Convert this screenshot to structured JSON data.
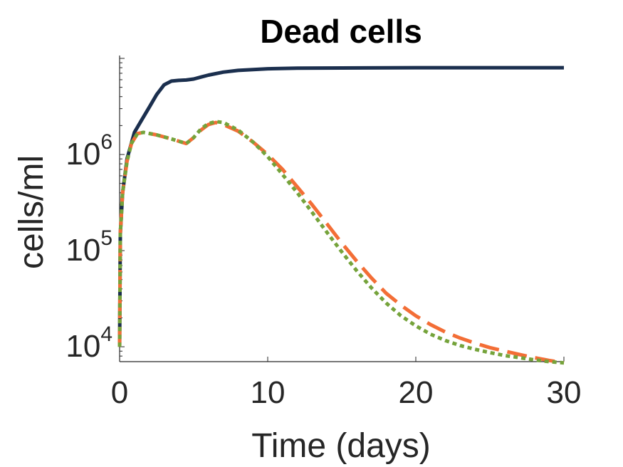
{
  "chart_data": {
    "type": "line",
    "title": "Dead cells",
    "xlabel": "Time (days)",
    "ylabel": "cells/ml",
    "xlim": [
      0,
      30
    ],
    "ylim": [
      7000,
      10000000
    ],
    "yscale": "log",
    "xticks": [
      0,
      10,
      20,
      30
    ],
    "xtick_labels": [
      "0",
      "10",
      "20",
      "30"
    ],
    "yticks": [
      10000,
      100000,
      1000000
    ],
    "ytick_labels": [
      {
        "base": "10",
        "exp": "4"
      },
      {
        "base": "10",
        "exp": "5"
      },
      {
        "base": "10",
        "exp": "6"
      }
    ],
    "grid": false,
    "legend": "none",
    "series": [
      {
        "color": "#1b2f4e",
        "style": "solid",
        "points": [
          [
            0,
            10000
          ],
          [
            0.05,
            150000
          ],
          [
            0.2,
            400000
          ],
          [
            0.5,
            900000
          ],
          [
            1,
            1700000
          ],
          [
            1.5,
            2300000
          ],
          [
            2,
            3100000
          ],
          [
            2.5,
            4200000
          ],
          [
            3,
            5300000
          ],
          [
            3.5,
            5800000
          ],
          [
            4,
            5900000
          ],
          [
            4.5,
            5950000
          ],
          [
            5,
            6100000
          ],
          [
            5.5,
            6400000
          ],
          [
            6,
            6700000
          ],
          [
            7,
            7200000
          ],
          [
            8,
            7500000
          ],
          [
            10,
            7800000
          ],
          [
            12,
            7900000
          ],
          [
            15,
            7950000
          ],
          [
            20,
            8000000
          ],
          [
            25,
            8000000
          ],
          [
            30,
            8000000
          ]
        ]
      },
      {
        "color": "#f36e36",
        "style": "dashed",
        "points": [
          [
            0,
            10000
          ],
          [
            0.05,
            150000
          ],
          [
            0.2,
            400000
          ],
          [
            0.5,
            850000
          ],
          [
            0.8,
            1300000
          ],
          [
            1.2,
            1650000
          ],
          [
            1.6,
            1700000
          ],
          [
            2.5,
            1600000
          ],
          [
            3.5,
            1450000
          ],
          [
            4.5,
            1300000
          ],
          [
            5,
            1500000
          ],
          [
            5.5,
            1800000
          ],
          [
            6,
            2050000
          ],
          [
            6.5,
            2150000
          ],
          [
            7,
            2050000
          ],
          [
            8,
            1750000
          ],
          [
            9,
            1350000
          ],
          [
            10,
            1000000
          ],
          [
            11,
            700000
          ],
          [
            12,
            460000
          ],
          [
            13,
            300000
          ],
          [
            14,
            190000
          ],
          [
            15,
            120000
          ],
          [
            16,
            78000
          ],
          [
            17,
            52000
          ],
          [
            18,
            36000
          ],
          [
            19,
            27000
          ],
          [
            20,
            21000
          ],
          [
            21,
            17000
          ],
          [
            22,
            14200
          ],
          [
            23,
            12300
          ],
          [
            24,
            10900
          ],
          [
            25,
            9800
          ],
          [
            26,
            9000
          ],
          [
            27,
            8300
          ],
          [
            28,
            7700
          ],
          [
            29,
            7200
          ],
          [
            30,
            6800
          ]
        ]
      },
      {
        "color": "#75a33b",
        "style": "dotted",
        "points": [
          [
            0,
            10000
          ],
          [
            0.05,
            150000
          ],
          [
            0.2,
            400000
          ],
          [
            0.5,
            850000
          ],
          [
            0.8,
            1300000
          ],
          [
            1.2,
            1650000
          ],
          [
            1.6,
            1700000
          ],
          [
            2.5,
            1600000
          ],
          [
            3.5,
            1450000
          ],
          [
            4.5,
            1300000
          ],
          [
            5,
            1500000
          ],
          [
            5.5,
            1850000
          ],
          [
            6,
            2100000
          ],
          [
            6.5,
            2200000
          ],
          [
            7,
            2150000
          ],
          [
            8,
            1800000
          ],
          [
            9,
            1350000
          ],
          [
            10,
            950000
          ],
          [
            11,
            620000
          ],
          [
            12,
            400000
          ],
          [
            13,
            250000
          ],
          [
            14,
            155000
          ],
          [
            15,
            97000
          ],
          [
            16,
            62000
          ],
          [
            17,
            41000
          ],
          [
            18,
            28500
          ],
          [
            19,
            21000
          ],
          [
            20,
            16500
          ],
          [
            21,
            13500
          ],
          [
            22,
            11600
          ],
          [
            23,
            10300
          ],
          [
            24,
            9400
          ],
          [
            25,
            8700
          ],
          [
            26,
            8100
          ],
          [
            27,
            7700
          ],
          [
            28,
            7300
          ],
          [
            29,
            7000
          ],
          [
            30,
            6800
          ]
        ]
      }
    ]
  }
}
